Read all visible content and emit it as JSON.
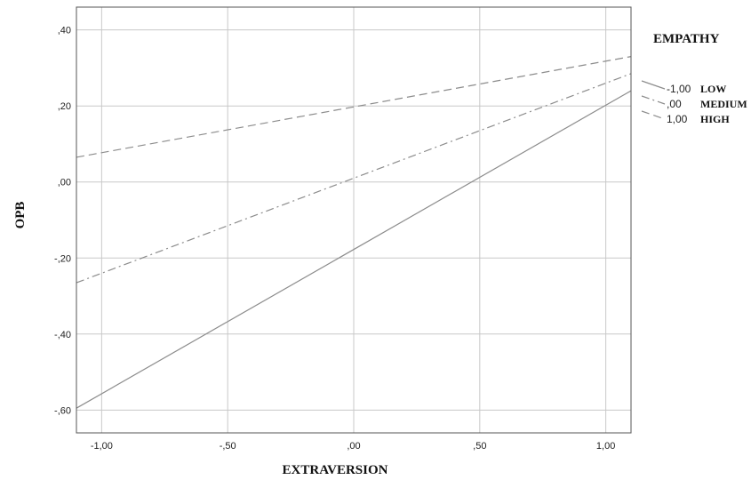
{
  "chart_data": {
    "type": "line",
    "xlabel": "EXTRAVERSION",
    "ylabel": "OPB",
    "xlim": [
      -1.1,
      1.1
    ],
    "ylim": [
      -0.66,
      0.46
    ],
    "x_ticks": [
      {
        "v": -1.0,
        "label": "-1,00"
      },
      {
        "v": -0.5,
        "label": "-,50"
      },
      {
        "v": 0.0,
        "label": ",00"
      },
      {
        "v": 0.5,
        "label": ",50"
      },
      {
        "v": 1.0,
        "label": "1,00"
      }
    ],
    "y_ticks": [
      {
        "v": 0.4,
        "label": ",40"
      },
      {
        "v": 0.2,
        "label": ",20"
      },
      {
        "v": 0.0,
        "label": ",00"
      },
      {
        "v": -0.2,
        "label": "-,20"
      },
      {
        "v": -0.4,
        "label": "-,40"
      },
      {
        "v": -0.6,
        "label": "-,60"
      }
    ],
    "grid": true,
    "legend": {
      "title": "EMPATHY",
      "placement": "right"
    },
    "series": [
      {
        "value_label": "-1,00",
        "name": "LOW",
        "style": "solid",
        "color": "#8c8c8c",
        "x": [
          -1.1,
          1.1
        ],
        "y": [
          -0.595,
          0.24
        ]
      },
      {
        "value_label": ",00",
        "name": "MEDIUM",
        "style": "dashdot",
        "color": "#8c8c8c",
        "x": [
          -1.1,
          1.1
        ],
        "y": [
          -0.265,
          0.285
        ]
      },
      {
        "value_label": "1,00",
        "name": "HIGH",
        "style": "dashed",
        "color": "#8c8c8c",
        "x": [
          -1.1,
          1.1
        ],
        "y": [
          0.065,
          0.33
        ]
      }
    ]
  }
}
